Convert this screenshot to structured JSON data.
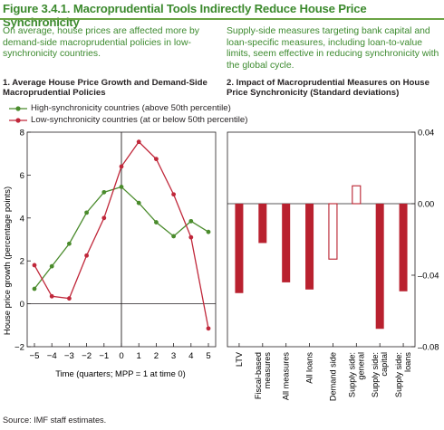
{
  "figure_title": "Figure 3.4.1. Macroprudential Tools Indirectly Reduce House Price Synchronicity",
  "intro_left": "On average, house prices are affected more by demand-side macroprudential policies in low-synchronicity countries.",
  "intro_right": "Supply-side measures targeting bank capital and loan-specific measures, including loan-to-value limits, seem effective in reducing synchronicity with the global cycle.",
  "source": "Source: IMF staff estimates.",
  "colors": {
    "green": "#4a8b2c",
    "red": "#c0273a",
    "bar": "#b9212f",
    "title": "#3c8a2e"
  },
  "chart_data": [
    {
      "type": "line",
      "title": "1. Average House Price Growth and Demand-Side Macroprudential Policies",
      "xlabel": "Time (quarters; MPP = 1 at time 0)",
      "ylabel": "House price growth (percentage points)",
      "xlim": [
        -5,
        5
      ],
      "ylim": [
        -2,
        8
      ],
      "x": [
        -5,
        -4,
        -3,
        -2,
        -1,
        0,
        1,
        2,
        3,
        4,
        5
      ],
      "x_ticks": [
        "−5",
        "−4",
        "−3",
        "−2",
        "−1",
        "0",
        "1",
        "2",
        "3",
        "4",
        "5"
      ],
      "y_ticks": [
        "−2",
        "0",
        "2",
        "4",
        "6",
        "8"
      ],
      "legend": "top-left",
      "series": [
        {
          "name": "High-synchronicity countries (above 50th percentile)",
          "color": "#4a8b2c",
          "values": [
            0.7,
            1.75,
            2.8,
            4.25,
            5.2,
            5.45,
            4.7,
            3.8,
            3.15,
            3.85,
            3.35
          ]
        },
        {
          "name": "Low-synchronicity countries (at or below 50th percentile)",
          "color": "#c0273a",
          "values": [
            1.8,
            0.35,
            0.25,
            2.25,
            4.0,
            6.4,
            7.55,
            6.75,
            5.1,
            3.1,
            -1.15
          ]
        }
      ]
    },
    {
      "type": "bar",
      "title": "2. Impact of Macroprudential Measures on House Price Synchronicity (Standard deviations)",
      "ylim": [
        -0.08,
        0.04
      ],
      "y_ticks": [
        "0.04",
        "0.00",
        "–0.04",
        "–0.08"
      ],
      "categories": [
        "LTV",
        "Fiscal-based measures",
        "All measures",
        "All loans",
        "Demand side",
        "Supply side: general",
        "Supply side: capital",
        "Supply side: loans"
      ],
      "values": [
        -0.05,
        -0.022,
        -0.044,
        -0.048,
        -0.031,
        0.01,
        -0.07,
        -0.049
      ],
      "hollow": [
        false,
        false,
        false,
        false,
        true,
        true,
        false,
        false
      ]
    }
  ]
}
